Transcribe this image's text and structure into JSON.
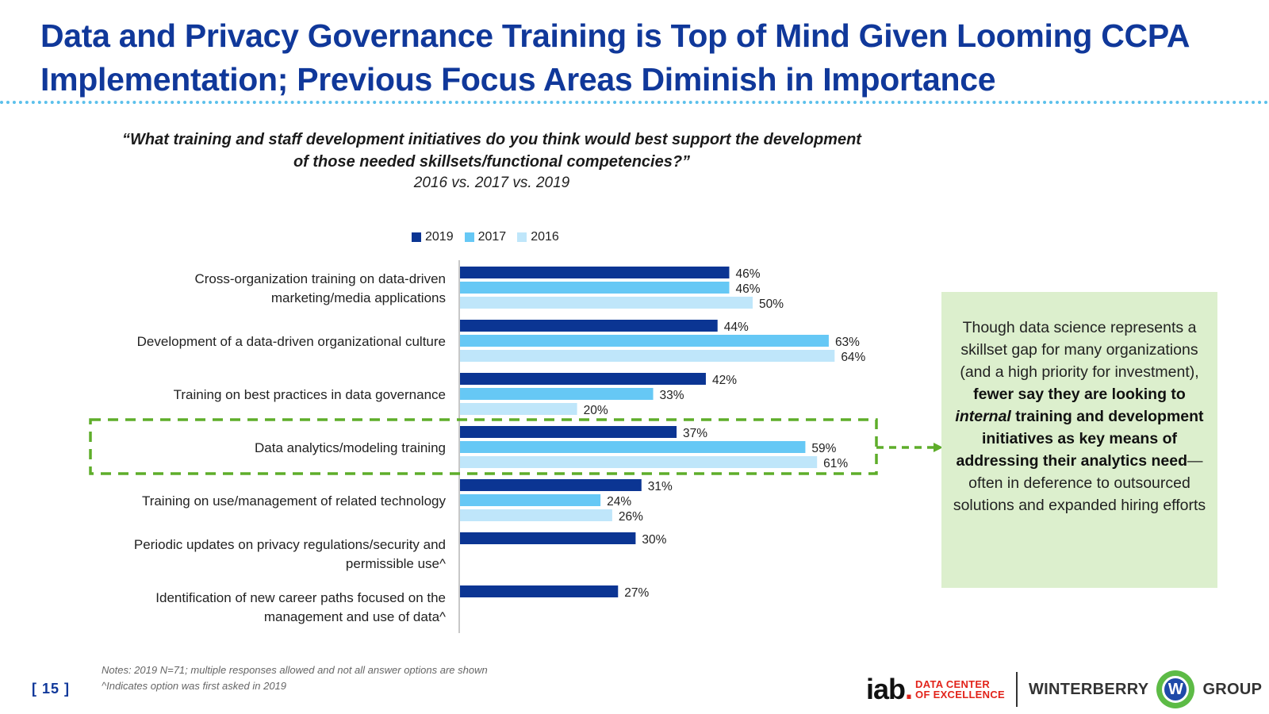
{
  "title": "Data and Privacy Governance Training is Top of Mind Given Looming CCPA Implementation; Previous Focus Areas Diminish in Importance",
  "question": "“What training and staff development initiatives do you think would best support the development of those needed skillsets/functional competencies?”",
  "subtitle": "2016 vs. 2017 vs. 2019",
  "colors": {
    "title": "#10389a",
    "s2019": "#0b3593",
    "s2017": "#66c8f5",
    "s2016": "#bfe6fa",
    "highlight": "#5ead2a",
    "callout_bg": "#dcefcd"
  },
  "chart_data": {
    "type": "bar",
    "orientation": "horizontal",
    "title": "",
    "xlabel": "",
    "ylabel": "",
    "xlim": [
      0,
      100
    ],
    "grid": false,
    "legend_position": "top",
    "categories": [
      "Cross-organization training on data-driven marketing/media applications",
      "Development of a data-driven organizational culture",
      "Training on best practices in data governance",
      "Data analytics/modeling training",
      "Training on use/management of related technology",
      "Periodic updates on privacy regulations/security and permissible use^",
      "Identification of new career paths focused on the management and use of data^"
    ],
    "category_lines": [
      [
        "Cross-organization training on data-driven",
        "marketing/media applications"
      ],
      [
        "Development of a data-driven organizational culture"
      ],
      [
        "Training on best practices in data governance"
      ],
      [
        "Data analytics/modeling training"
      ],
      [
        "Training on use/management of related technology"
      ],
      [
        "Periodic updates on privacy regulations/security and",
        "permissible use^"
      ],
      [
        "Identification of new career paths focused on the",
        "management and use of data^"
      ]
    ],
    "series": [
      {
        "name": "2019",
        "values": [
          46,
          44,
          42,
          37,
          31,
          30,
          27
        ]
      },
      {
        "name": "2017",
        "values": [
          46,
          63,
          33,
          59,
          24,
          null,
          null
        ]
      },
      {
        "name": "2016",
        "values": [
          50,
          64,
          20,
          61,
          26,
          null,
          null
        ]
      }
    ],
    "highlighted_category": "Data analytics/modeling training"
  },
  "callout": {
    "part1": "Though data science represents a skillset gap for many organizations (and a high priority for investment), ",
    "bold1": "fewer say they are looking to ",
    "bold_italic": "internal",
    "bold2": " training and development initiatives as key means of addressing their analytics need",
    "part2": "—often in deference to outsourced solutions and expanded hiring efforts"
  },
  "notes": {
    "line1": "Notes: 2019 N=71; multiple responses allowed and not all answer options are shown",
    "line2": "^Indicates option was first asked in 2019"
  },
  "page_number": "[ 15 ]",
  "logos": {
    "iab_main": "iab",
    "iab_dot": ".",
    "iab_line1": "DATA CENTER",
    "iab_line2": "OF EXCELLENCE",
    "wg_left": "WINTERBERRY",
    "wg_badge": "W",
    "wg_right": "GROUP"
  }
}
